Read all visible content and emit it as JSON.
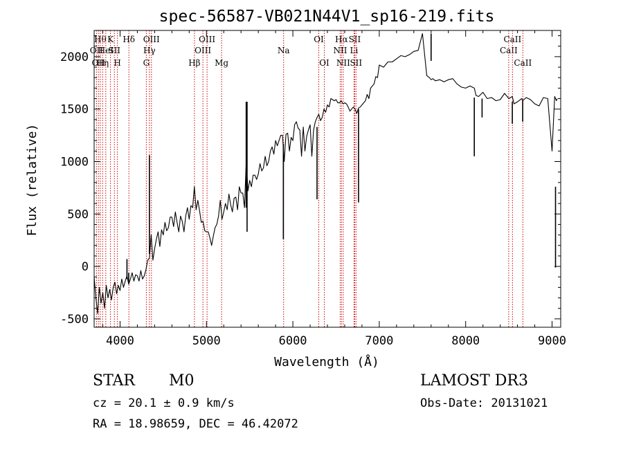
{
  "chart_data": {
    "type": "line",
    "title": "spec-56587-VB021N44V1_sp16-219.fits",
    "xlabel": "Wavelength (Å)",
    "ylabel": "Flux (relative)",
    "xlim": [
      3700,
      9100
    ],
    "ylim": [
      -580,
      2250
    ],
    "xticks": [
      4000,
      5000,
      6000,
      7000,
      8000,
      9000
    ],
    "yticks": [
      -500,
      0,
      500,
      1000,
      1500,
      2000
    ],
    "series": [
      {
        "name": "spectrum",
        "x": [
          3700,
          3720,
          3740,
          3760,
          3780,
          3800,
          3820,
          3840,
          3860,
          3880,
          3900,
          3920,
          3940,
          3960,
          3980,
          4000,
          4020,
          4040,
          4060,
          4080,
          4100,
          4120,
          4140,
          4160,
          4180,
          4200,
          4220,
          4240,
          4260,
          4280,
          4300,
          4320,
          4340,
          4360,
          4380,
          4400,
          4420,
          4440,
          4460,
          4480,
          4500,
          4520,
          4540,
          4560,
          4580,
          4600,
          4620,
          4640,
          4660,
          4680,
          4700,
          4720,
          4740,
          4760,
          4780,
          4800,
          4820,
          4840,
          4860,
          4880,
          4900,
          4920,
          4940,
          4960,
          4980,
          5000,
          5020,
          5040,
          5060,
          5080,
          5100,
          5120,
          5140,
          5160,
          5180,
          5200,
          5220,
          5240,
          5260,
          5280,
          5300,
          5320,
          5340,
          5360,
          5380,
          5400,
          5420,
          5440,
          5460,
          5480,
          5500,
          5520,
          5540,
          5560,
          5580,
          5600,
          5620,
          5640,
          5660,
          5680,
          5700,
          5720,
          5740,
          5760,
          5780,
          5800,
          5820,
          5840,
          5860,
          5880,
          5900,
          5920,
          5940,
          5960,
          5980,
          6000,
          6020,
          6040,
          6060,
          6080,
          6100,
          6120,
          6140,
          6160,
          6180,
          6200,
          6220,
          6240,
          6260,
          6280,
          6300,
          6320,
          6340,
          6360,
          6380,
          6400,
          6420,
          6440,
          6460,
          6480,
          6500,
          6520,
          6540,
          6560,
          6580,
          6600,
          6620,
          6640,
          6660,
          6680,
          6700,
          6720,
          6740,
          6760,
          6780,
          6800,
          6820,
          6840,
          6860,
          6880,
          6900,
          6920,
          6940,
          6960,
          6980,
          7000,
          7050,
          7100,
          7150,
          7200,
          7250,
          7300,
          7350,
          7400,
          7450,
          7500,
          7550,
          7580,
          7600,
          7620,
          7650,
          7700,
          7750,
          7800,
          7850,
          7900,
          7950,
          8000,
          8050,
          8100,
          8120,
          8150,
          8200,
          8250,
          8300,
          8350,
          8400,
          8450,
          8500,
          8540,
          8560,
          8600,
          8650,
          8660,
          8700,
          8750,
          8800,
          8850,
          8900,
          8950,
          9000,
          9030,
          9050,
          9060
        ],
        "y": [
          -100,
          -300,
          -450,
          -200,
          -350,
          -250,
          -400,
          -180,
          -300,
          -220,
          -320,
          -200,
          -150,
          -260,
          -180,
          -230,
          -120,
          -200,
          -140,
          -90,
          -170,
          -120,
          -60,
          -140,
          -80,
          -90,
          -140,
          -40,
          -120,
          -90,
          -30,
          60,
          80,
          300,
          60,
          170,
          260,
          330,
          190,
          350,
          300,
          420,
          340,
          370,
          470,
          470,
          380,
          520,
          420,
          330,
          480,
          430,
          330,
          480,
          560,
          450,
          580,
          560,
          760,
          540,
          630,
          530,
          420,
          430,
          340,
          330,
          330,
          270,
          200,
          290,
          370,
          400,
          480,
          630,
          450,
          520,
          600,
          540,
          690,
          590,
          520,
          650,
          660,
          540,
          760,
          700,
          700,
          560,
          1000,
          720,
          820,
          760,
          870,
          870,
          830,
          880,
          980,
          910,
          940,
          1050,
          960,
          1000,
          1100,
          1140,
          1070,
          1200,
          1150,
          1200,
          1250,
          1250,
          1000,
          1260,
          1270,
          1100,
          1230,
          1200,
          1350,
          1380,
          1320,
          1300,
          1050,
          1330,
          1100,
          1240,
          1300,
          1350,
          1050,
          1300,
          1380,
          1420,
          1450,
          1390,
          1420,
          1500,
          1470,
          1540,
          1520,
          1600,
          1590,
          1580,
          1590,
          1560,
          1560,
          1580,
          1550,
          1560,
          1550,
          1520,
          1480,
          1500,
          1520,
          1500,
          1460,
          1510,
          1520,
          1540,
          1560,
          1580,
          1640,
          1600,
          1700,
          1720,
          1740,
          1810,
          1800,
          1920,
          1900,
          1950,
          1950,
          1980,
          2010,
          2000,
          2020,
          2050,
          2060,
          2220,
          1820,
          1800,
          1780,
          1790,
          1770,
          1780,
          1760,
          1780,
          1790,
          1740,
          1710,
          1700,
          1720,
          1700,
          1630,
          1620,
          1660,
          1600,
          1610,
          1580,
          1590,
          1650,
          1600,
          1620,
          1550,
          1570,
          1600,
          1580,
          1610,
          1590,
          1550,
          1530,
          1610,
          1600,
          1100,
          1620,
          1580,
          1600
        ]
      }
    ],
    "absorption_spikes": [
      {
        "x": 5470,
        "y_top": 1570,
        "y_bottom": 330
      },
      {
        "x": 5890,
        "y_top": 1170,
        "y_bottom": 260
      },
      {
        "x": 6280,
        "y_top": 1330,
        "y_bottom": 640
      },
      {
        "x": 6760,
        "y_top": 1500,
        "y_bottom": 610
      },
      {
        "x": 8100,
        "y_top": 1610,
        "y_bottom": 1050
      },
      {
        "x": 8190,
        "y_top": 1600,
        "y_bottom": 1420
      },
      {
        "x": 8540,
        "y_top": 1570,
        "y_bottom": 1360
      },
      {
        "x": 8660,
        "y_top": 1580,
        "y_bottom": 1380
      },
      {
        "x": 9040,
        "y_top": 760,
        "y_bottom": -10
      }
    ],
    "emission_spikes": [
      {
        "x": 4100,
        "y_top": -60,
        "y_bottom": -160
      },
      {
        "x": 4340,
        "y_top": 1060,
        "y_bottom": 120
      },
      {
        "x": 4080,
        "y_top": 70,
        "y_bottom": -120
      },
      {
        "x": 5460,
        "y_top": 1570,
        "y_bottom": 560
      },
      {
        "x": 7600,
        "y_top": 2220,
        "y_bottom": 1960
      }
    ],
    "line_markers": [
      {
        "x": 3727,
        "label": "OII",
        "row": 2
      },
      {
        "x": 3750,
        "label": "OII",
        "row": 3
      },
      {
        "x": 3771,
        "label": "Hθ",
        "row": 1
      },
      {
        "x": 3798,
        "label": "Hη",
        "row": 3
      },
      {
        "x": 3835,
        "label": "HeI",
        "row": 2
      },
      {
        "x": 3889,
        "label": "K",
        "row": 1
      },
      {
        "x": 3934,
        "label": "SII",
        "row": 2
      },
      {
        "x": 3969,
        "label": "H",
        "row": 3
      },
      {
        "x": 4102,
        "label": "Hδ",
        "row": 1
      },
      {
        "x": 4304,
        "label": "G",
        "row": 3
      },
      {
        "x": 4340,
        "label": "Hγ",
        "row": 2
      },
      {
        "x": 4363,
        "label": "OIII",
        "row": 1
      },
      {
        "x": 4861,
        "label": "Hβ",
        "row": 3
      },
      {
        "x": 4959,
        "label": "OIII",
        "row": 2
      },
      {
        "x": 5007,
        "label": "OIII",
        "row": 1
      },
      {
        "x": 5175,
        "label": "Mg",
        "row": 3
      },
      {
        "x": 5893,
        "label": "Na",
        "row": 2
      },
      {
        "x": 6300,
        "label": "OI",
        "row": 1
      },
      {
        "x": 6364,
        "label": "OI",
        "row": 3
      },
      {
        "x": 6548,
        "label": "NII",
        "row": 2
      },
      {
        "x": 6563,
        "label": "Hα",
        "row": 1
      },
      {
        "x": 6583,
        "label": "NII",
        "row": 3
      },
      {
        "x": 6708,
        "label": "Li",
        "row": 2
      },
      {
        "x": 6716,
        "label": "SII",
        "row": 1
      },
      {
        "x": 6731,
        "label": "SII",
        "row": 3
      },
      {
        "x": 8498,
        "label": "CaII",
        "row": 2
      },
      {
        "x": 8542,
        "label": "CaII",
        "row": 1
      },
      {
        "x": 8662,
        "label": "CaII",
        "row": 3
      }
    ],
    "colors": {
      "spectrum": "#000000",
      "marker": "#cc0000",
      "axis": "#000000"
    }
  },
  "footer": {
    "object_class": "STAR",
    "subclass": "M0",
    "redshift": "cz = 20.1 ± 0.9 km/s",
    "coords": "RA =  18.98659, DEC =  46.42072",
    "survey": "LAMOST DR3",
    "obs_date": "Obs-Date: 20131021"
  }
}
